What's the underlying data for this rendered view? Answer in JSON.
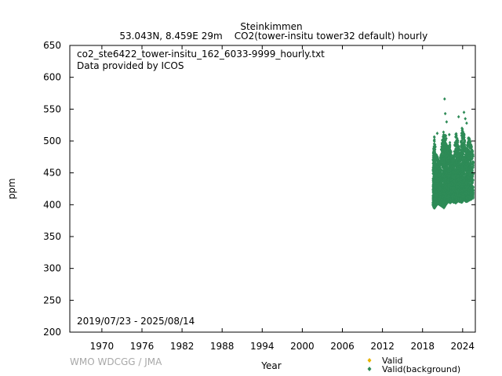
{
  "header": {
    "station": "Steinkimmen",
    "location": "53.043N, 8.459E 29m",
    "dataset": "CO2(tower-insitu tower32 default) hourly"
  },
  "chart_data": {
    "type": "scatter",
    "file_label": "co2_ste6422_tower-insitu_162_6033-9999_hourly.txt",
    "provider_label": "Data provided by ICOS",
    "date_range_label": "2019/07/23 - 2025/08/14",
    "xlabel": "Year",
    "ylabel": "ppm",
    "xlim": [
      1965.2,
      2025.9
    ],
    "ylim": [
      200,
      650
    ],
    "x_ticks": [
      1970,
      1976,
      1982,
      1988,
      1994,
      2000,
      2006,
      2012,
      2018,
      2024
    ],
    "y_ticks": [
      200,
      250,
      300,
      350,
      400,
      450,
      500,
      550,
      600,
      650
    ],
    "grid": false,
    "legend_position": "bottom-right",
    "series": [
      {
        "name": "Valid",
        "color": "#e8b400",
        "marker": "diamond",
        "points": []
      },
      {
        "name": "Valid(background)",
        "color": "#2e8b57",
        "marker": "diamond",
        "envelope": [
          {
            "x": 2019.56,
            "min": 400,
            "max": 470
          },
          {
            "x": 2019.75,
            "min": 394,
            "max": 510
          },
          {
            "x": 2020.0,
            "min": 398,
            "max": 480
          },
          {
            "x": 2020.3,
            "min": 402,
            "max": 475
          },
          {
            "x": 2020.6,
            "min": 400,
            "max": 465
          },
          {
            "x": 2020.9,
            "min": 398,
            "max": 500
          },
          {
            "x": 2021.2,
            "min": 395,
            "max": 520
          },
          {
            "x": 2021.5,
            "min": 400,
            "max": 510
          },
          {
            "x": 2021.8,
            "min": 405,
            "max": 490
          },
          {
            "x": 2022.1,
            "min": 403,
            "max": 500
          },
          {
            "x": 2022.4,
            "min": 405,
            "max": 470
          },
          {
            "x": 2022.7,
            "min": 404,
            "max": 480
          },
          {
            "x": 2023.0,
            "min": 403,
            "max": 515
          },
          {
            "x": 2023.3,
            "min": 406,
            "max": 500
          },
          {
            "x": 2023.6,
            "min": 405,
            "max": 480
          },
          {
            "x": 2023.9,
            "min": 404,
            "max": 520
          },
          {
            "x": 2024.2,
            "min": 408,
            "max": 515
          },
          {
            "x": 2024.5,
            "min": 405,
            "max": 480
          },
          {
            "x": 2024.8,
            "min": 406,
            "max": 505
          },
          {
            "x": 2025.1,
            "min": 408,
            "max": 505
          },
          {
            "x": 2025.6,
            "min": 410,
            "max": 480
          }
        ],
        "outliers": [
          {
            "x": 2021.3,
            "y": 566
          },
          {
            "x": 2021.4,
            "y": 543
          },
          {
            "x": 2021.6,
            "y": 530
          },
          {
            "x": 2023.4,
            "y": 538
          },
          {
            "x": 2023.9,
            "y": 520
          },
          {
            "x": 2024.2,
            "y": 545
          },
          {
            "x": 2024.4,
            "y": 535
          },
          {
            "x": 2024.6,
            "y": 528
          },
          {
            "x": 2020.2,
            "y": 512
          },
          {
            "x": 2022.0,
            "y": 510
          }
        ]
      }
    ]
  },
  "footer": {
    "watermark": "WMO WDCGG / JMA"
  }
}
